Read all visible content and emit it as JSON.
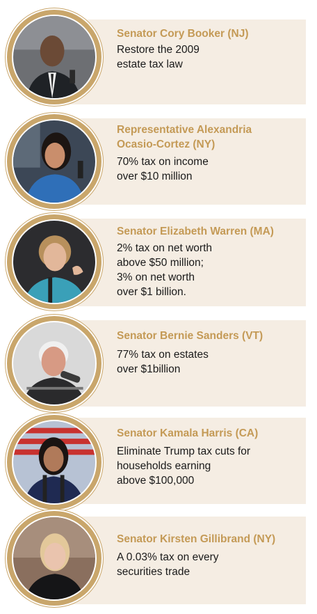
{
  "profiles": [
    {
      "name": "Senator Cory Booker (NJ)",
      "proposal": "Restore the 2009\nestate tax law",
      "photo_icon": "portrait-photo"
    },
    {
      "name": "Representative  Alexandria\nOcasio-Cortez (NY)",
      "proposal": "70% tax on income\nover $10 million",
      "photo_icon": "portrait-photo"
    },
    {
      "name": "Senator  Elizabeth Warren (MA)",
      "proposal": "2% tax on net worth\nabove $50 million;\n3% on net worth\nover $1 billion.",
      "photo_icon": "portrait-photo"
    },
    {
      "name": "Senator Bernie Sanders (VT)",
      "proposal": "77% tax on estates\nover $1billion",
      "photo_icon": "portrait-photo"
    },
    {
      "name": "Senator  Kamala Harris (CA)",
      "proposal": "Eliminate Trump tax cuts for\nhouseholds earning\nabove $100,000",
      "photo_icon": "portrait-photo"
    },
    {
      "name": "Senator Kirsten Gillibrand (NY)",
      "proposal": "A 0.03% tax on every\nsecurities trade",
      "photo_icon": "portrait-photo"
    }
  ],
  "colors": {
    "name_gold": "#c49a56",
    "panel_beige": "#f5ede3",
    "ring_gold": "#c9a66b",
    "text": "#1a1a1a"
  }
}
